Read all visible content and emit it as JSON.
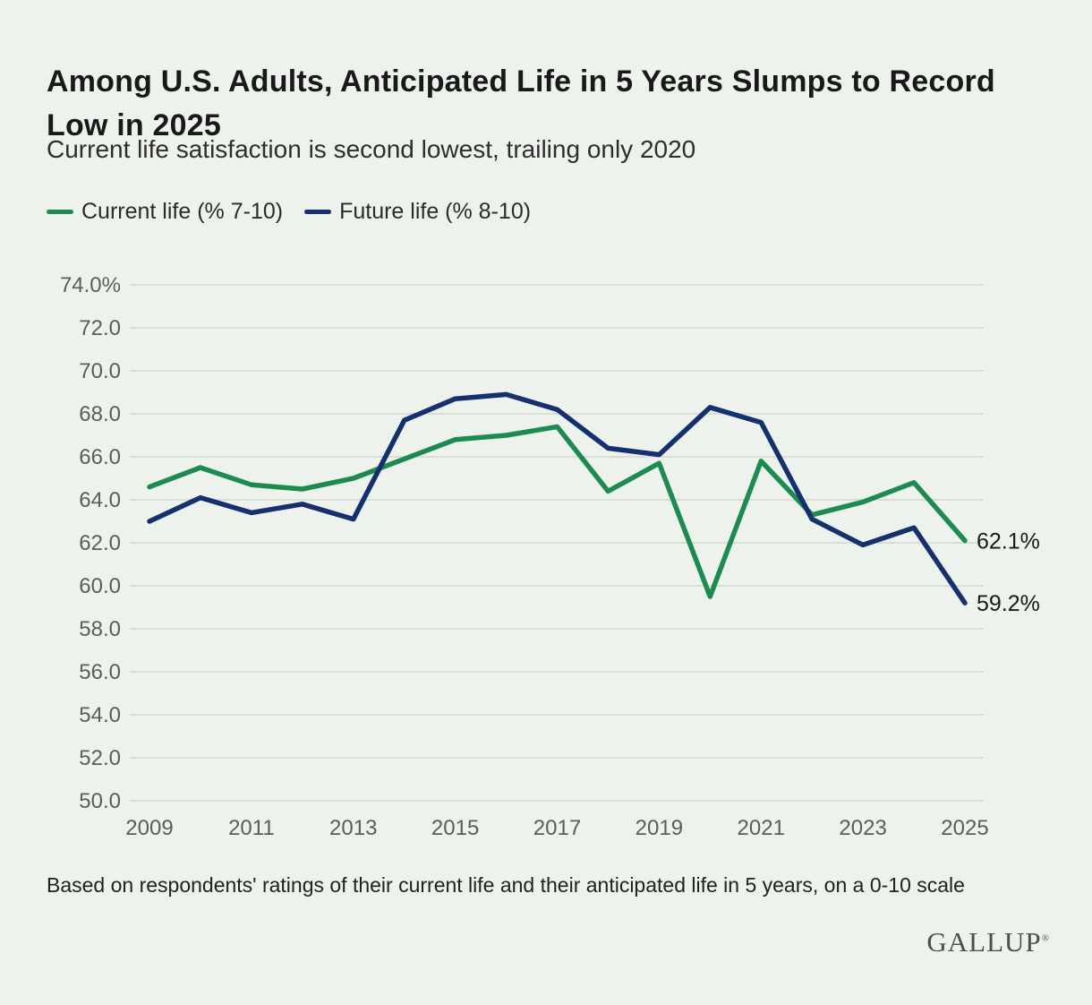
{
  "header": {
    "title": "Among U.S. Adults, Anticipated Life in 5 Years Slumps to Record Low in 2025",
    "subtitle": "Current life satisfaction is second lowest, trailing only 2020"
  },
  "chart_data": {
    "type": "line",
    "title": "Among U.S. Adults, Anticipated Life in 5 Years Slumps to Record Low in 2025",
    "xlabel": "",
    "ylabel": "",
    "x": [
      2009,
      2010,
      2011,
      2012,
      2013,
      2014,
      2015,
      2016,
      2017,
      2018,
      2019,
      2020,
      2021,
      2022,
      2023,
      2024,
      2025
    ],
    "series": [
      {
        "name": "Current life (% 7-10)",
        "color": "#1d8b4f",
        "values": [
          64.6,
          65.5,
          64.7,
          64.5,
          65.0,
          65.9,
          66.8,
          67.0,
          67.4,
          64.4,
          65.7,
          59.5,
          65.8,
          63.3,
          63.9,
          64.8,
          62.1
        ],
        "end_label": "62.1%"
      },
      {
        "name": "Future life (% 8-10)",
        "color": "#14306d",
        "values": [
          63.0,
          64.1,
          63.4,
          63.8,
          63.1,
          67.7,
          68.7,
          68.9,
          68.2,
          66.4,
          66.1,
          68.3,
          67.6,
          63.1,
          61.9,
          62.7,
          59.2
        ],
        "end_label": "59.2%"
      }
    ],
    "ylim": [
      50,
      74
    ],
    "ytick_step": 2,
    "ytick_labels": [
      "74.0%",
      "72.0",
      "70.0",
      "68.0",
      "66.0",
      "64.0",
      "62.0",
      "60.0",
      "58.0",
      "56.0",
      "54.0",
      "52.0",
      "50.0"
    ],
    "xtick_labels": [
      "2009",
      "2011",
      "2013",
      "2015",
      "2017",
      "2019",
      "2021",
      "2023",
      "2025"
    ],
    "grid": true,
    "legend_position": "top-left"
  },
  "footer": {
    "note": "Based on respondents' ratings of their current life and their anticipated life in 5 years, on a 0-10 scale",
    "logo": "GALLUP",
    "logo_mark": "®"
  }
}
